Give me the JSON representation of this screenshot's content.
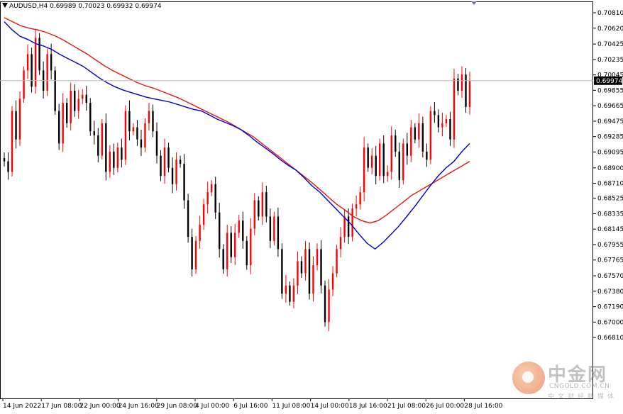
{
  "header": {
    "symbol_info": "AUDUSD,H4  0.69989 0.70023 0.69932 0.69974"
  },
  "watermark": {
    "cn": "中金网",
    "domain": "CNGOLD.COM.CN",
    "sub": "中文财经新媒体"
  },
  "chart_data": {
    "type": "candlestick",
    "symbol": "AUDUSD",
    "timeframe": "H4",
    "ohlc_header": {
      "open": 0.69989,
      "high": 0.70023,
      "low": 0.69932,
      "close": 0.69974
    },
    "current_price": 0.69974,
    "ylim": [
      0.6606,
      0.7095
    ],
    "y_ticks": [
      "0.70810",
      "0.70620",
      "0.70425",
      "0.70235",
      "0.70045",
      "0.69855",
      "0.69665",
      "0.69475",
      "0.69285",
      "0.69095",
      "0.68900",
      "0.68710",
      "0.68525",
      "0.68335",
      "0.68145",
      "0.67955",
      "0.67765",
      "0.67570",
      "0.67380",
      "0.67190",
      "0.67000",
      "0.66810"
    ],
    "x_ticks": [
      "14 Jun 2022",
      "17 Jun 08:00",
      "22 Jun 00:00",
      "24 Jun 16:00",
      "29 Jun 08:00",
      "4 Jul 00:00",
      "6 Jul 16:00",
      "11 Jul 08:00",
      "14 Jul 00:00",
      "18 Jul 16:00",
      "21 Jul 08:00",
      "26 Jul 00:00",
      "28 Jul 16:00"
    ],
    "colors": {
      "bull": "#ff0000",
      "bear": "#000000",
      "ma_fast": "#0000cc",
      "ma_slow": "#ee1111",
      "grid": "#c8c8c8"
    },
    "closes": [
      0.6898,
      0.6885,
      0.696,
      0.6925,
      0.6975,
      0.701,
      0.703,
      0.699,
      0.705,
      0.701,
      0.6985,
      0.703,
      0.701,
      0.696,
      0.692,
      0.697,
      0.6945,
      0.6985,
      0.696,
      0.6975,
      0.698,
      0.697,
      0.6935,
      0.693,
      0.6905,
      0.6945,
      0.6885,
      0.691,
      0.689,
      0.6915,
      0.69,
      0.696,
      0.6935,
      0.694,
      0.6925,
      0.6915,
      0.6945,
      0.696,
      0.6935,
      0.6905,
      0.688,
      0.6915,
      0.689,
      0.687,
      0.69,
      0.6895,
      0.685,
      0.6805,
      0.6765,
      0.68,
      0.682,
      0.6845,
      0.686,
      0.687,
      0.6835,
      0.679,
      0.6765,
      0.681,
      0.678,
      0.681,
      0.6825,
      0.68,
      0.677,
      0.6815,
      0.685,
      0.683,
      0.686,
      0.683,
      0.68,
      0.683,
      0.679,
      0.6735,
      0.6745,
      0.6725,
      0.6745,
      0.6775,
      0.676,
      0.679,
      0.6735,
      0.677,
      0.679,
      0.6745,
      0.67,
      0.674,
      0.676,
      0.679,
      0.6805,
      0.683,
      0.6805,
      0.684,
      0.6845,
      0.686,
      0.6915,
      0.689,
      0.6905,
      0.688,
      0.692,
      0.688,
      0.6885,
      0.693,
      0.691,
      0.6875,
      0.692,
      0.6905,
      0.694,
      0.6925,
      0.6945,
      0.691,
      0.69,
      0.696,
      0.6955,
      0.694,
      0.6945,
      0.695,
      0.6925,
      0.7,
      0.6985,
      0.7005,
      0.6965,
      0.69974
    ],
    "ma_fast": [
      0.707,
      0.706,
      0.7052,
      0.7048,
      0.7043,
      0.704,
      0.7036,
      0.703,
      0.7025,
      0.702,
      0.7015,
      0.7008,
      0.7001,
      0.6995,
      0.699,
      0.6986,
      0.6983,
      0.698,
      0.6977,
      0.6975,
      0.6973,
      0.6971,
      0.6968,
      0.6965,
      0.6962,
      0.696,
      0.6955,
      0.695,
      0.6946,
      0.6942,
      0.6937,
      0.693,
      0.6922,
      0.6915,
      0.6908,
      0.69,
      0.6893,
      0.6887,
      0.6878,
      0.6868,
      0.686,
      0.685,
      0.684,
      0.683,
      0.682,
      0.6808,
      0.6797,
      0.679,
      0.6798,
      0.6808,
      0.6818,
      0.683,
      0.6842,
      0.6855,
      0.6868,
      0.688,
      0.689,
      0.6898,
      0.691,
      0.692
    ],
    "ma_slow": [
      0.7075,
      0.707,
      0.7065,
      0.7062,
      0.706,
      0.7057,
      0.7053,
      0.7048,
      0.7042,
      0.7036,
      0.703,
      0.7023,
      0.7016,
      0.701,
      0.7005,
      0.7,
      0.6995,
      0.6991,
      0.6988,
      0.6984,
      0.698,
      0.6976,
      0.6971,
      0.6966,
      0.6961,
      0.6956,
      0.6951,
      0.6946,
      0.694,
      0.6934,
      0.6928,
      0.692,
      0.6912,
      0.6904,
      0.6896,
      0.6888,
      0.688,
      0.6872,
      0.6863,
      0.6854,
      0.6845,
      0.6838,
      0.683,
      0.6825,
      0.6822,
      0.6825,
      0.6832,
      0.684,
      0.6848,
      0.6856,
      0.6862,
      0.6868,
      0.6874,
      0.688,
      0.6886,
      0.6892,
      0.6898
    ]
  }
}
